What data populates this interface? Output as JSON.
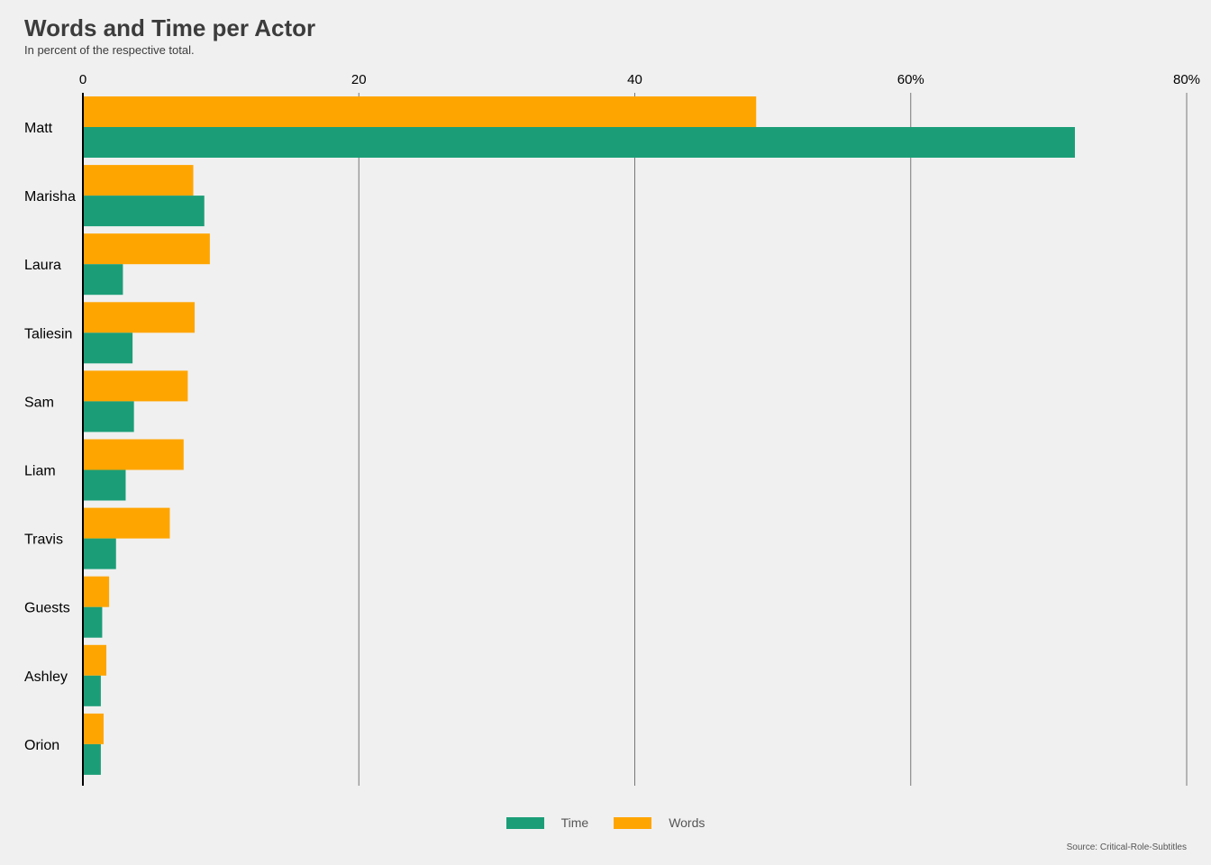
{
  "title": "Words and Time per Actor",
  "subtitle": "In percent of the respective total.",
  "source": "Source: Critical-Role-Subtitles",
  "colors": {
    "time": "#1b9e77",
    "words": "#ffa500",
    "grid": "#777777",
    "background": "#f0f0f0"
  },
  "chart_data": {
    "type": "bar",
    "orientation": "horizontal",
    "categories": [
      "Matt",
      "Marisha",
      "Laura",
      "Taliesin",
      "Sam",
      "Liam",
      "Travis",
      "Guests",
      "Ashley",
      "Orion"
    ],
    "series": [
      {
        "name": "Words",
        "values": [
          48.8,
          8.0,
          9.2,
          8.1,
          7.6,
          7.3,
          6.3,
          1.9,
          1.7,
          1.5
        ]
      },
      {
        "name": "Time",
        "values": [
          71.9,
          8.8,
          2.9,
          3.6,
          3.7,
          3.1,
          2.4,
          1.4,
          1.3,
          1.3
        ]
      }
    ],
    "xlim": [
      0,
      80
    ],
    "xticks": [
      0,
      20,
      40,
      60,
      80
    ],
    "xtick_labels": [
      "0",
      "20",
      "40",
      "60%",
      "80%"
    ],
    "xaxis_position": "top",
    "grid": "vertical",
    "legend_position": "bottom",
    "legend": [
      {
        "name": "Time"
      },
      {
        "name": "Words"
      }
    ]
  }
}
